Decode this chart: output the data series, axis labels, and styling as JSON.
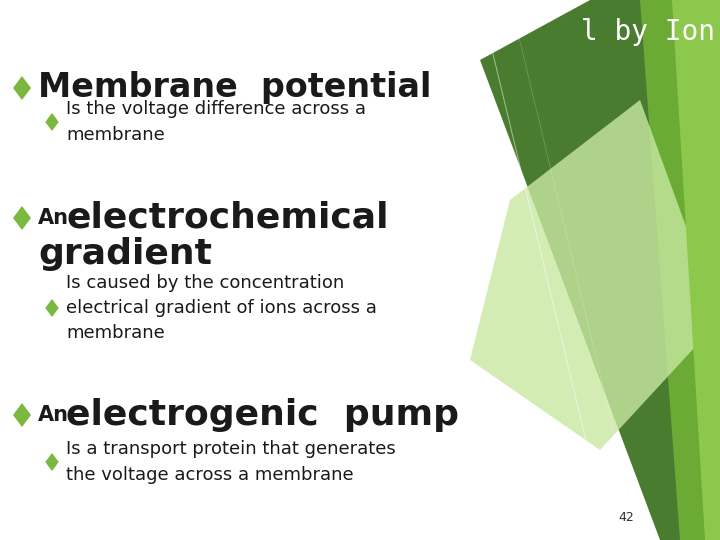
{
  "bg_color": "#ffffff",
  "title_partial": "l by Ion",
  "title_color": "#ffffff",
  "diamond_color": "#7ab840",
  "text_color": "#1a1a1a",
  "bullet1_head_normal": "Membrane  ",
  "bullet1_head_bold": "potential",
  "bullet1_sub": "Is the voltage difference across a\nmembrane",
  "bullet2_small": "An",
  "bullet2_large": " electrochemical\ngradient",
  "bullet2_sub": "Is caused by the concentration\nelectrical gradient of ions across a\nmembrane",
  "bullet3_small": "An",
  "bullet3_large": " electrogenic  pump",
  "bullet3_sub": "Is a transport protein that generates\nthe voltage across a membrane",
  "page_num": "42",
  "green_dark": "#4a7c2f",
  "green_mid": "#6aaa35",
  "green_light": "#8cc84b",
  "green_pale": "#c8e8a0",
  "green_strip": "#7ab840"
}
